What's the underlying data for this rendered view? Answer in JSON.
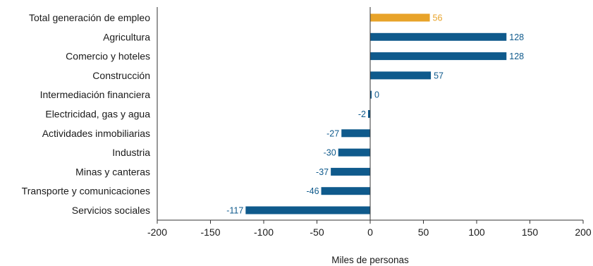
{
  "chart_data": {
    "type": "bar",
    "orientation": "horizontal",
    "categories": [
      "Total generación de empleo",
      "Agricultura",
      "Comercio y hoteles",
      "Construcción",
      "Intermediación financiera",
      "Electricidad, gas y agua",
      "Actividades inmobiliarias",
      "Industria",
      "Minas y canteras",
      "Transporte y comunicaciones",
      "Servicios sociales"
    ],
    "values": [
      56,
      128,
      128,
      57,
      0,
      -2,
      -27,
      -30,
      -37,
      -46,
      -117
    ],
    "value_labels": [
      "56",
      "128",
      "128",
      "57",
      "0",
      "-2",
      "-27",
      "-30",
      "-37",
      "-46",
      "-117"
    ],
    "xlim": [
      -200,
      200
    ],
    "xticks": [
      -200,
      -150,
      -100,
      -50,
      0,
      50,
      100,
      150,
      200
    ],
    "xtick_labels": [
      "-200",
      "-150",
      "-100",
      "-50",
      "0",
      "50",
      "100",
      "150",
      "200"
    ],
    "xlabel": "Miles de personas",
    "ylabel": "",
    "title": "",
    "grid": false,
    "legend": "none",
    "colors": {
      "highlight": "#e8a329",
      "default": "#0f5a8c",
      "axis": "#333333",
      "label_text": "#1a1a1a"
    },
    "highlight_index": 0
  }
}
